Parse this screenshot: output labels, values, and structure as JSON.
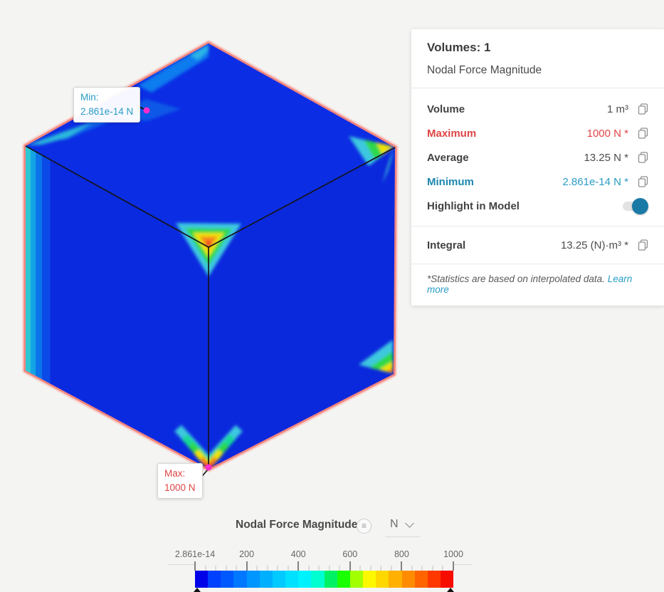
{
  "colors": {
    "accent_red": "#e04444",
    "accent_teal": "#1b87ae",
    "teal_value": "#2a9cc4",
    "link_teal": "#2a9dc9",
    "toggle_blue": "#1a7aa6",
    "highlight_pink": "#f3867e",
    "marker_magenta": "#fb2ccb",
    "face_blue": "#0a2ce2"
  },
  "panel": {
    "title": "Volumes: 1",
    "subtitle": "Nodal Force Magnitude",
    "rows": [
      {
        "label": "Volume",
        "value": "1 m³"
      },
      {
        "label": "Maximum",
        "value": "1000 N *"
      },
      {
        "label": "Average",
        "value": "13.25 N *"
      },
      {
        "label": "Minimum",
        "value": "2.861e-14 N *"
      }
    ],
    "toggle_label": "Highlight in Model",
    "toggle_state": "on",
    "integral": {
      "label": "Integral",
      "value": "13.25 (N)·m³ *"
    },
    "footnote": "*Statistics are based on interpolated data.",
    "footnote_link": "Learn more"
  },
  "annotations": {
    "min": {
      "title": "Min:",
      "value": "2.861e-14 N"
    },
    "max": {
      "title": "Max:",
      "value": "1000 N"
    }
  },
  "legend": {
    "title": "Nodal Force Magnitude",
    "menu_icon": "≡",
    "unit": "N",
    "tick_labels": [
      "2.861e-14",
      "200",
      "400",
      "600",
      "800",
      "1000"
    ],
    "minor_per_major": 4,
    "colors": [
      "#0202e8",
      "#0040ff",
      "#0059ff",
      "#0078ff",
      "#0096ff",
      "#00b0ff",
      "#00caff",
      "#00e0ff",
      "#00f2ff",
      "#00ffd0",
      "#00f264",
      "#1aff00",
      "#a2ff00",
      "#fdf800",
      "#ffd800",
      "#ffb000",
      "#ff8c00",
      "#ff6400",
      "#ff3800",
      "#f70c00"
    ]
  }
}
